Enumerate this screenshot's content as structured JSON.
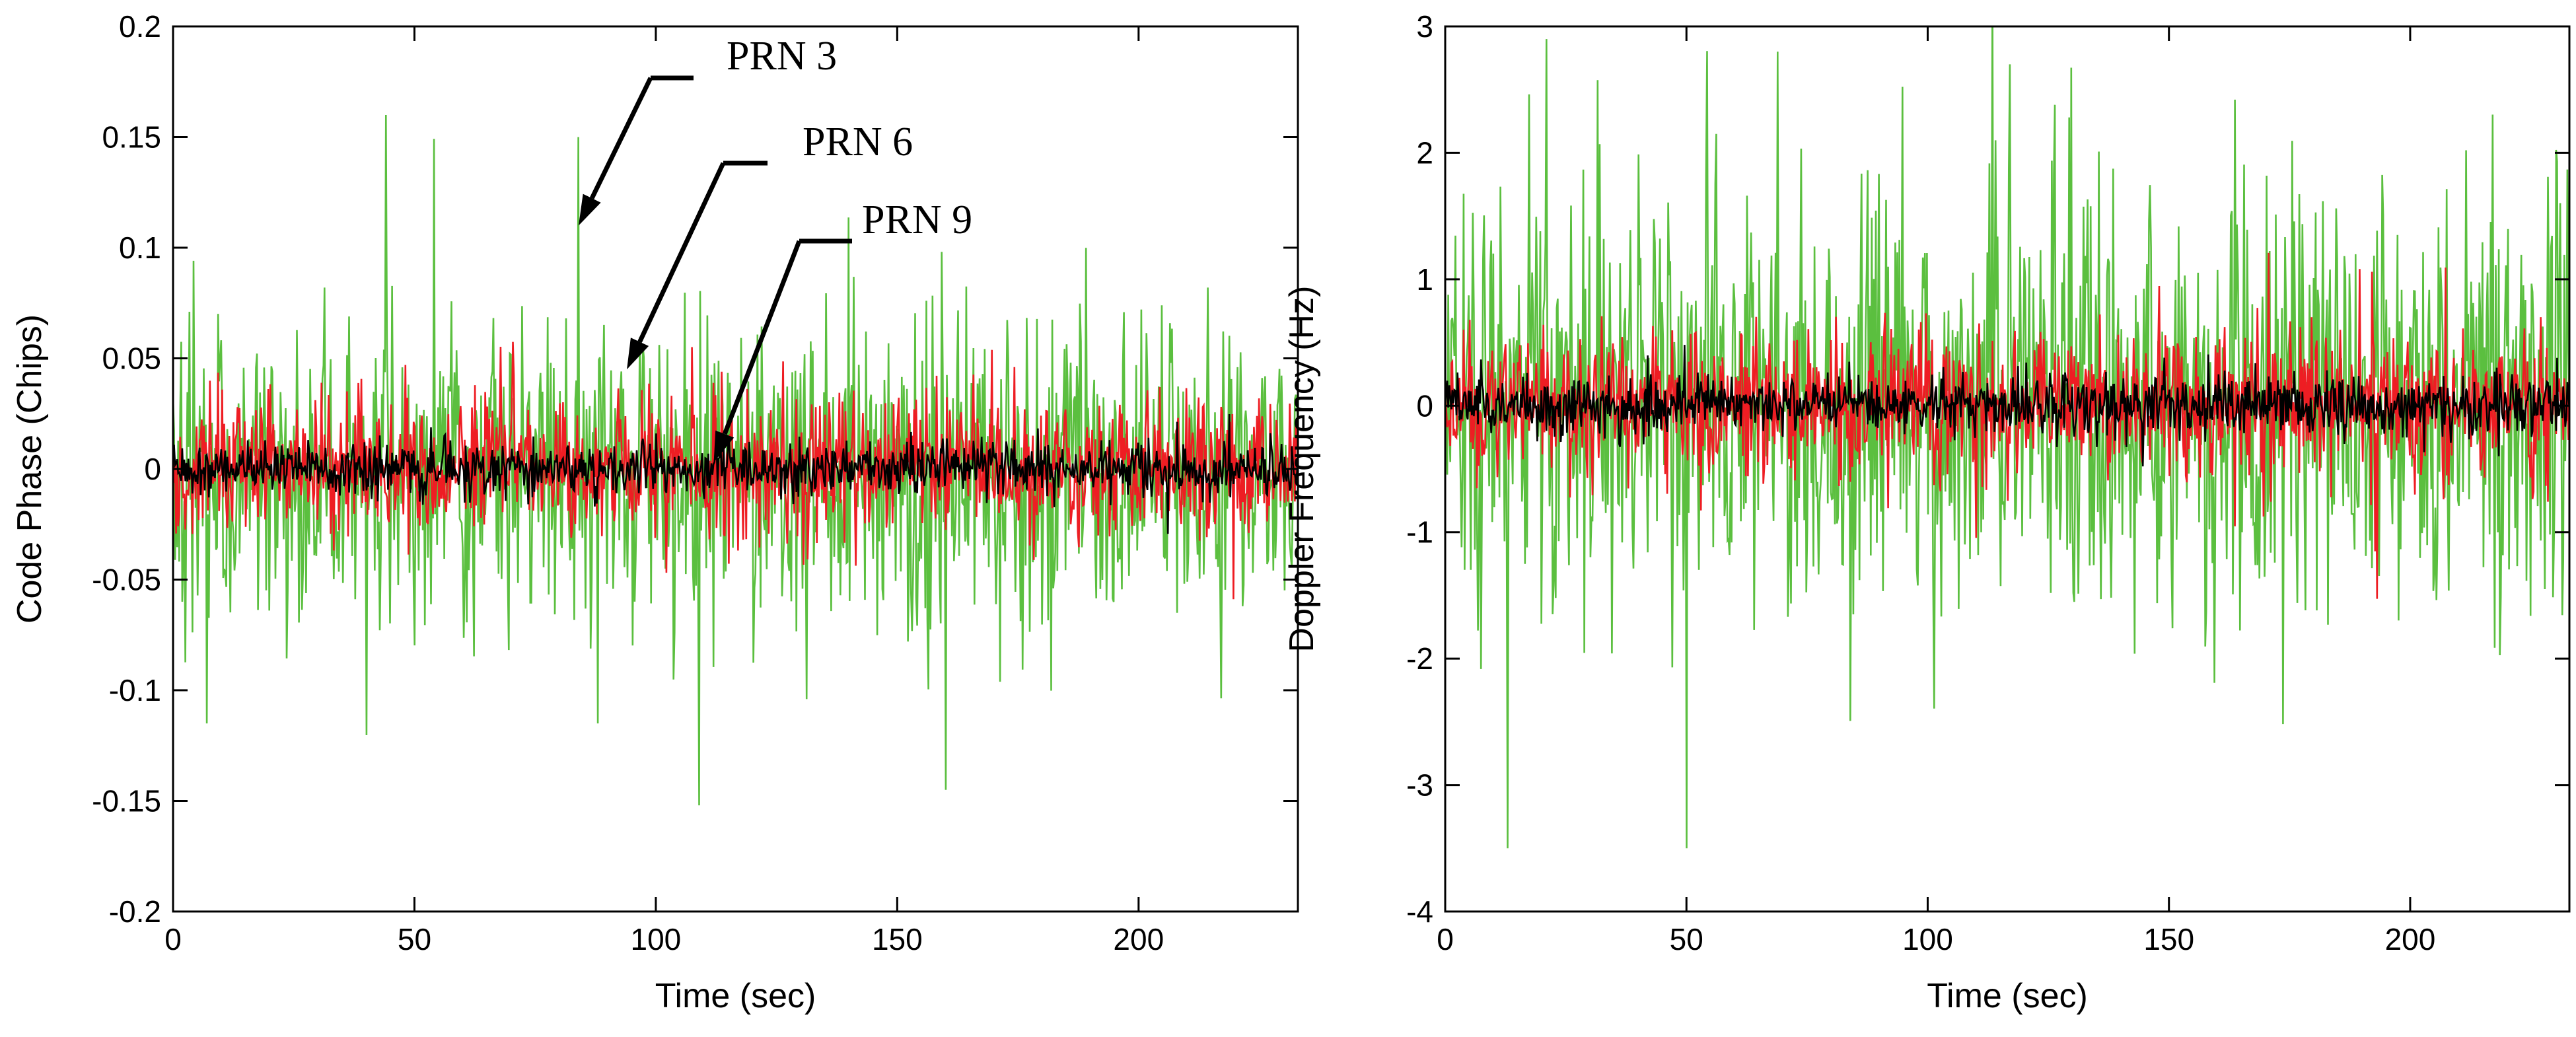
{
  "chart_data": [
    {
      "type": "line",
      "title": "",
      "xlabel": "Time (sec)",
      "ylabel": "Code Phase (Chips)",
      "xlim": [
        0,
        233
      ],
      "ylim": [
        -0.2,
        0.2
      ],
      "xticks": [
        0,
        50,
        100,
        150,
        200
      ],
      "yticks": [
        -0.2,
        -0.15,
        -0.1,
        -0.05,
        0,
        0.05,
        0.1,
        0.15,
        0.2
      ],
      "grid": false,
      "legend": "none",
      "series": [
        {
          "color": "#5bbf3f",
          "approx_std": 0.035,
          "peak_values": [
            {
              "x": 44,
              "y": 0.16
            },
            {
              "x": 84,
              "y": 0.15
            },
            {
              "x": 109,
              "y": -0.152
            },
            {
              "x": 160,
              "y": -0.145
            },
            {
              "x": 7,
              "y": -0.115
            }
          ]
        },
        {
          "color": "#ee1d23",
          "approx_std": 0.016
        },
        {
          "color": "#000000",
          "approx_std": 0.006
        }
      ],
      "annotations": [
        {
          "text": "PRN 3",
          "points_to": {
            "x": 84,
            "y": 0.11
          }
        },
        {
          "text": "PRN 6",
          "points_to": {
            "x": 94,
            "y": 0.045
          }
        },
        {
          "text": "PRN 9",
          "points_to": {
            "x": 112,
            "y": 0.003
          }
        }
      ]
    },
    {
      "type": "line",
      "title": "",
      "xlabel": "Time (sec)",
      "ylabel": "Doppler Frequency (Hz)",
      "xlim": [
        0,
        233
      ],
      "ylim": [
        -4,
        3
      ],
      "xticks": [
        0,
        50,
        100,
        150,
        200
      ],
      "yticks": [
        -4,
        -3,
        -2,
        -1,
        0,
        1,
        2,
        3
      ],
      "grid": false,
      "legend": "none",
      "series": [
        {
          "color": "#5bbf3f",
          "approx_std": 0.85,
          "peak_values": [
            {
              "x": 21,
              "y": 2.9
            },
            {
              "x": 13,
              "y": -3.5
            },
            {
              "x": 50,
              "y": -3.5
            },
            {
              "x": 69,
              "y": 2.8
            },
            {
              "x": 117,
              "y": 2.7
            }
          ]
        },
        {
          "color": "#ee1d23",
          "approx_std": 0.3
        },
        {
          "color": "#000000",
          "approx_std": 0.12
        }
      ]
    }
  ]
}
